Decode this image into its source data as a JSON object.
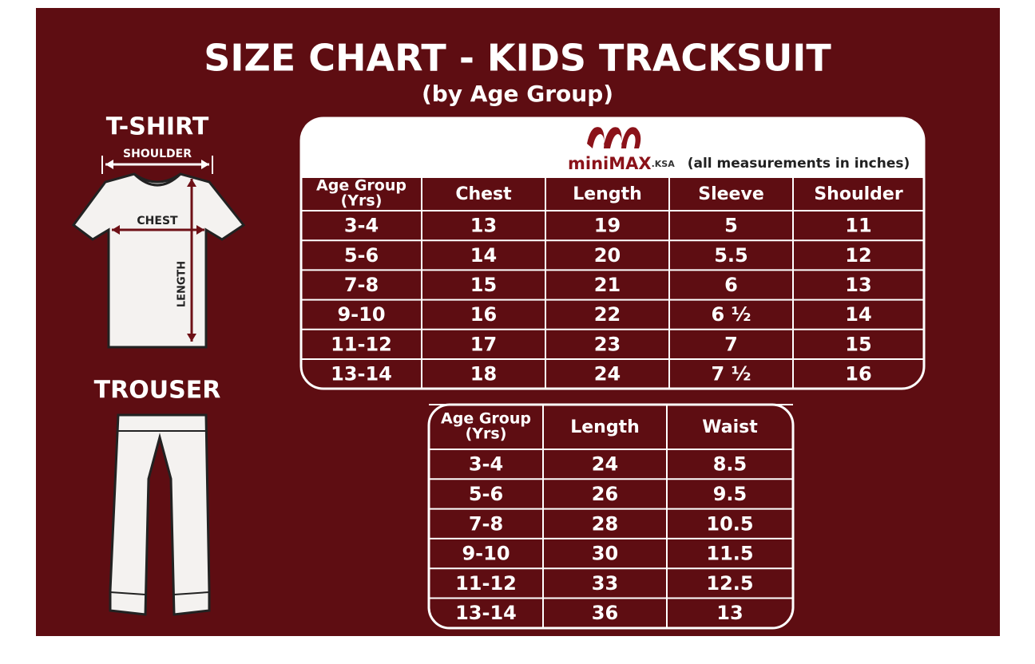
{
  "header": {
    "title": "SIZE CHART - KIDS TRACKSUIT",
    "subtitle": "(by Age Group)"
  },
  "tshirt": {
    "label": "T-SHIRT",
    "shoulder": "SHOULDER",
    "chest": "CHEST",
    "length": "LENGTH"
  },
  "trouser": {
    "label": "TROUSER"
  },
  "logo": {
    "brand": "miniMAX",
    "suffix": ".KSA"
  },
  "note": "(all measurements in inches)",
  "tshirt_table": {
    "columns": [
      [
        "Age Group",
        "(Yrs)"
      ],
      "Chest",
      "Length",
      "Sleeve",
      "Shoulder"
    ],
    "rows": [
      [
        "3-4",
        "13",
        "19",
        "5",
        "11"
      ],
      [
        "5-6",
        "14",
        "20",
        "5.5",
        "12"
      ],
      [
        "7-8",
        "15",
        "21",
        "6",
        "13"
      ],
      [
        "9-10",
        "16",
        "22",
        "6 ½",
        "14"
      ],
      [
        "11-12",
        "17",
        "23",
        "7",
        "15"
      ],
      [
        "13-14",
        "18",
        "24",
        "7 ½",
        "16"
      ]
    ]
  },
  "trouser_table": {
    "columns": [
      [
        "Age Group",
        "(Yrs)"
      ],
      "Length",
      "Waist"
    ],
    "rows": [
      [
        "3-4",
        "24",
        "8.5"
      ],
      [
        "5-6",
        "26",
        "9.5"
      ],
      [
        "7-8",
        "28",
        "10.5"
      ],
      [
        "9-10",
        "30",
        "11.5"
      ],
      [
        "11-12",
        "33",
        "12.5"
      ],
      [
        "13-14",
        "36",
        "13"
      ]
    ]
  }
}
